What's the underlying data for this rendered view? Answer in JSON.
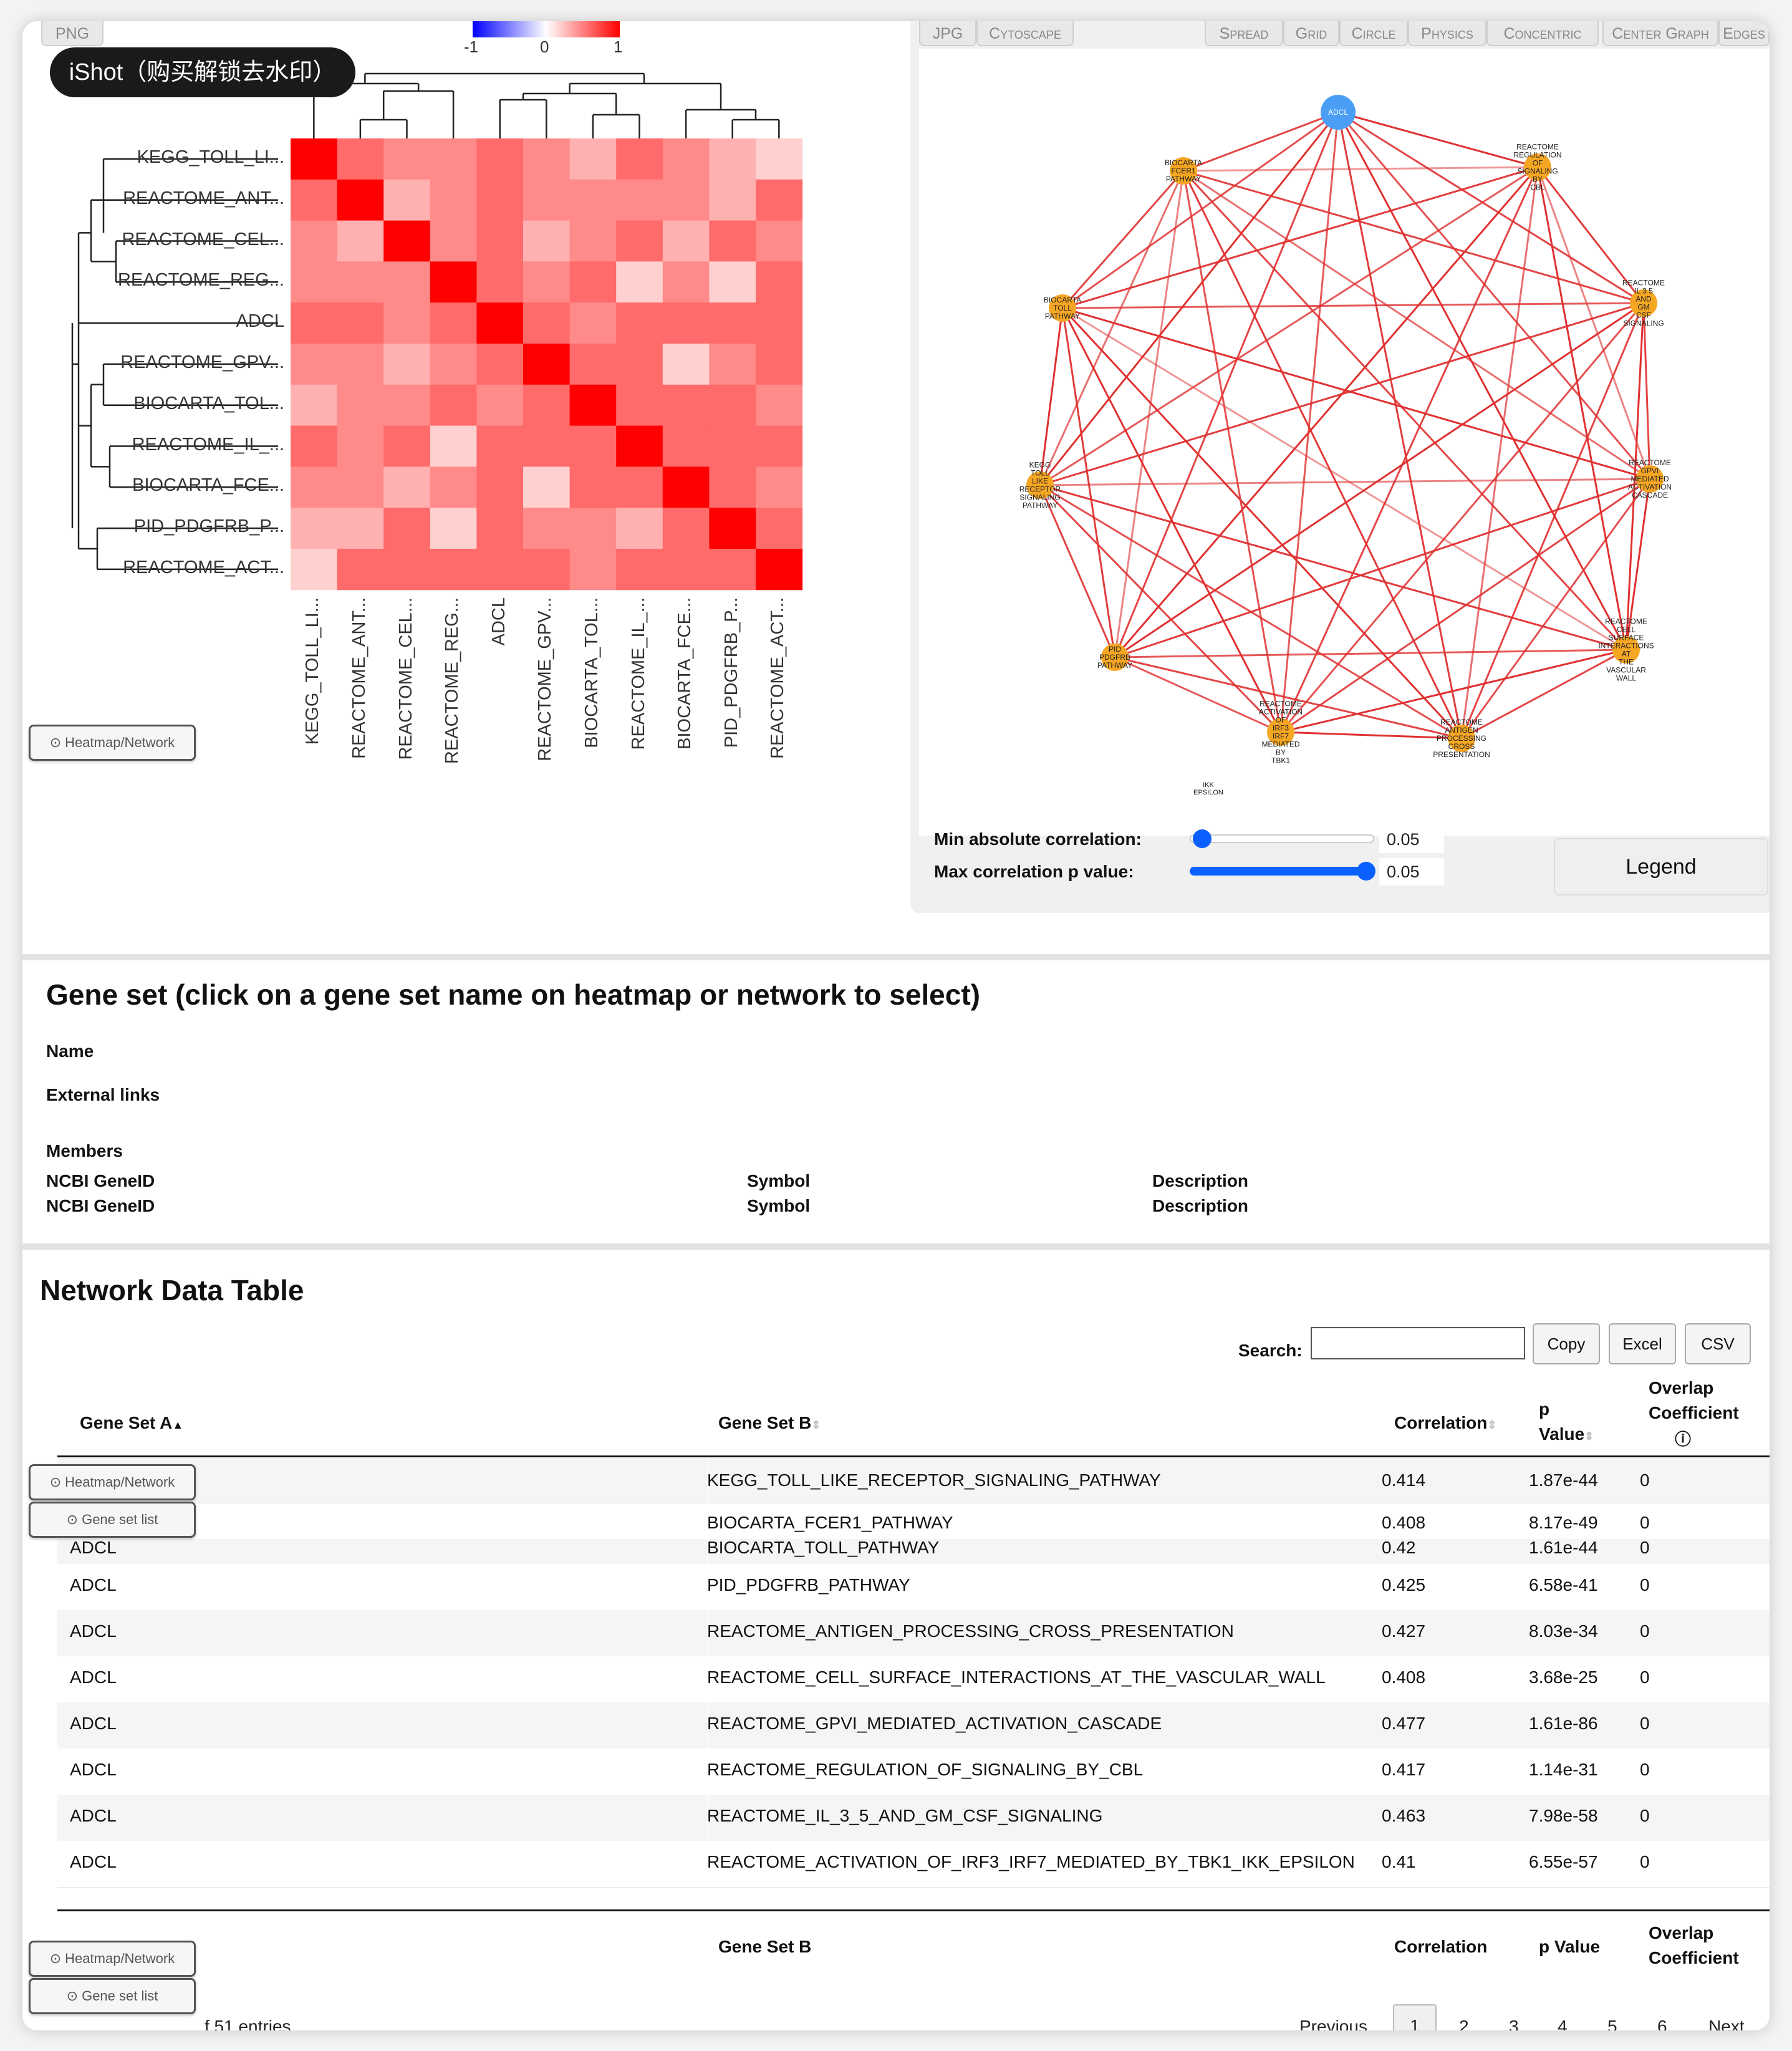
{
  "heatmap": {
    "png_button": "PNG",
    "colorbar": {
      "min_label": "-1",
      "mid_label": "0",
      "max_label": "1"
    },
    "row_labels": [
      "KEGG_TOLL_LI...",
      "REACTOME_ANT...",
      "REACTOME_CEL...",
      "REACTOME_REG...",
      "ADCL",
      "REACTOME_GPV...",
      "BIOCARTA_TOL...",
      "REACTOME_IL_...",
      "BIOCARTA_FCE...",
      "PID_PDGFRB_P...",
      "REACTOME_ACT..."
    ],
    "col_labels": [
      "KEGG_TOLL_LI...",
      "REACTOME_ANT...",
      "REACTOME_CEL...",
      "REACTOME_REG...",
      "ADCL",
      "REACTOME_GPV...",
      "BIOCARTA_TOL...",
      "REACTOME_IL_...",
      "BIOCARTA_FCE...",
      "PID_PDGFRB_P...",
      "REACTOME_ACT..."
    ],
    "colors": {
      "diag": "#ff0000",
      "high": "#ff6a6a",
      "mid": "#ff8a8a",
      "low": "#ffb0b0",
      "vlow": "#ffd0d0"
    }
  },
  "watermark": "iShot（购买解锁去水印）",
  "network": {
    "toolbar_left": [
      "JPG",
      "Cytoscape"
    ],
    "toolbar_right": [
      "Spread",
      "Grid",
      "Circle",
      "Physics",
      "Concentric",
      "Center Graph",
      "Edges"
    ],
    "hub_label": "ADCL",
    "nodes": [
      {
        "lines": [
          "ADCL"
        ]
      },
      {
        "lines": [
          "REACTOME",
          "REGULATION",
          "OF",
          "SIGNALING",
          "BY",
          "CBL"
        ]
      },
      {
        "lines": [
          "REACTOME",
          "IL 3 5",
          "AND",
          "GM",
          "CSF",
          "SIGNALING"
        ]
      },
      {
        "lines": [
          "REACTOME",
          "GPVI",
          "MEDIATED",
          "ACTIVATION",
          "CASCADE"
        ]
      },
      {
        "lines": [
          "REACTOME",
          "CELL",
          "SURFACE",
          "INTERACTIONS",
          "AT",
          "THE",
          "VASCULAR",
          "WALL"
        ]
      },
      {
        "lines": [
          "REACTOME",
          "ANTIGEN",
          "PROCESSING",
          "CROSS",
          "PRESENTATION"
        ]
      },
      {
        "lines": [
          "REACTOME",
          "ACTIVATION",
          "OF",
          "IRF3",
          "IRF7",
          "MEDIATED",
          "BY",
          "TBK1"
        ]
      },
      {
        "lines": [
          "PID",
          "PDGFRB",
          "PATHWAY"
        ]
      },
      {
        "lines": [
          "KEGG",
          "TOLL",
          "LIKE",
          "RECEPTOR",
          "SIGNALING",
          "PATHWAY"
        ]
      },
      {
        "lines": [
          "BIOCARTA",
          "TOLL",
          "PATHWAY"
        ]
      },
      {
        "lines": [
          "BIOCARTA",
          "FCER1",
          "PATHWAY"
        ]
      }
    ],
    "extra_label": [
      "IKK",
      "EPSILON"
    ],
    "colors": {
      "hub": "#4a9ff5",
      "node": "#f5a623",
      "edge": "#e03030"
    },
    "min_corr_label": "Min absolute correlation:",
    "min_corr_value": "0.05",
    "min_corr_fraction": 0.05,
    "max_p_label": "Max correlation p value:",
    "max_p_value": "0.05",
    "max_p_fraction": 1.0,
    "legend_button": "Legend"
  },
  "float_buttons": {
    "heatmap_network": "Heatmap/Network",
    "gene_set_list": "Gene set list"
  },
  "gene_set": {
    "title": "Gene set (click on a gene set name on heatmap or network to select)",
    "name_label": "Name",
    "links_label": "External links",
    "members_label": "Members",
    "col1": "NCBI GeneID",
    "col2": "Symbol",
    "col3": "Description"
  },
  "table": {
    "title": "Network Data Table",
    "search_label": "Search:",
    "buttons": [
      "Copy",
      "Excel",
      "CSV"
    ],
    "headers": {
      "a": "Gene Set A",
      "b": "Gene Set B",
      "corr": "Correlation",
      "p1": "p",
      "p2": "Value",
      "ov1": "Overlap",
      "ov2": "Coefficient",
      "info_icon": "ⓘ"
    },
    "rows_top": [
      {
        "a": "",
        "b": "KEGG_TOLL_LIKE_RECEPTOR_SIGNALING_PATHWAY",
        "corr": "0.414",
        "p": "1.87e-44",
        "ov": "0"
      },
      {
        "a": "",
        "b": "BIOCARTA_FCER1_PATHWAY",
        "corr": "0.408",
        "p": "8.17e-49",
        "ov": "0"
      }
    ],
    "rows": [
      {
        "a": "ADCL",
        "b": "BIOCARTA_TOLL_PATHWAY",
        "corr": "0.42",
        "p": "1.61e-44",
        "ov": "0"
      },
      {
        "a": "ADCL",
        "b": "PID_PDGFRB_PATHWAY",
        "corr": "0.425",
        "p": "6.58e-41",
        "ov": "0"
      },
      {
        "a": "ADCL",
        "b": "REACTOME_ANTIGEN_PROCESSING_CROSS_PRESENTATION",
        "corr": "0.427",
        "p": "8.03e-34",
        "ov": "0"
      },
      {
        "a": "ADCL",
        "b": "REACTOME_CELL_SURFACE_INTERACTIONS_AT_THE_VASCULAR_WALL",
        "corr": "0.408",
        "p": "3.68e-25",
        "ov": "0"
      },
      {
        "a": "ADCL",
        "b": "REACTOME_GPVI_MEDIATED_ACTIVATION_CASCADE",
        "corr": "0.477",
        "p": "1.61e-86",
        "ov": "0"
      },
      {
        "a": "ADCL",
        "b": "REACTOME_REGULATION_OF_SIGNALING_BY_CBL",
        "corr": "0.417",
        "p": "1.14e-31",
        "ov": "0"
      },
      {
        "a": "ADCL",
        "b": "REACTOME_IL_3_5_AND_GM_CSF_SIGNALING",
        "corr": "0.463",
        "p": "7.98e-58",
        "ov": "0"
      },
      {
        "a": "ADCL",
        "b": "REACTOME_ACTIVATION_OF_IRF3_IRF7_MEDIATED_BY_TBK1_IKK_EPSILON",
        "corr": "0.41",
        "p": "6.55e-57",
        "ov": "0"
      }
    ],
    "footer_headers": {
      "b": "Gene Set B",
      "corr": "Correlation",
      "p": "p Value",
      "ov1": "Overlap",
      "ov2": "Coefficient"
    },
    "entries_text": "f 51 entries",
    "pagination": {
      "previous": "Previous",
      "pages": [
        "1",
        "2",
        "3",
        "4",
        "5",
        "6"
      ],
      "next": "Next",
      "active": "1"
    }
  }
}
